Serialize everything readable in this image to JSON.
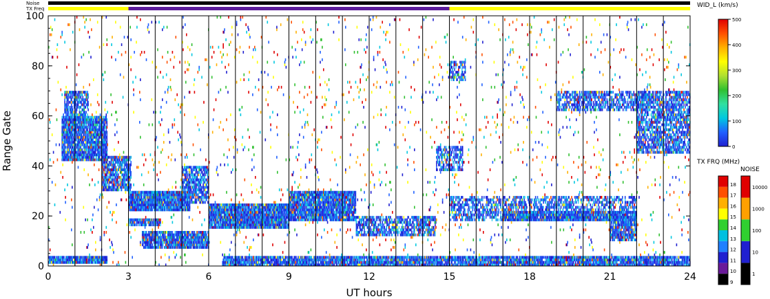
{
  "chart_data": {
    "type": "heatmap",
    "xlabel": "UT hours",
    "ylabel": "Range Gate",
    "xlim": [
      0,
      24
    ],
    "ylim": [
      0,
      100
    ],
    "x_ticks": [
      "0",
      "3",
      "6",
      "9",
      "12",
      "15",
      "18",
      "21",
      "24"
    ],
    "x_tick_values": [
      0,
      3,
      6,
      9,
      12,
      15,
      18,
      21,
      24
    ],
    "y_ticks": [
      "0",
      "20",
      "40",
      "60",
      "80",
      "100"
    ],
    "y_tick_values": [
      0,
      20,
      40,
      60,
      80,
      100
    ],
    "vertical_lines_ut": [
      1,
      2,
      3,
      4,
      5,
      6,
      7,
      8,
      9,
      10,
      11,
      12,
      13,
      14,
      15,
      16,
      17,
      18,
      19,
      20,
      21,
      22,
      23
    ],
    "top_bars": {
      "noise_label": "Noise",
      "txfreq_label": "TX Freq",
      "noise_color": "#000000",
      "txfreq_segments": [
        {
          "start": 0,
          "end": 3,
          "color": "#ffff00"
        },
        {
          "start": 3,
          "end": 15,
          "color": "#5a1a9a"
        },
        {
          "start": 15,
          "end": 24,
          "color": "#ffff00"
        }
      ]
    },
    "width_colorbar": {
      "title": "WID_L (km/s)",
      "ticks": [
        "0",
        "100",
        "200",
        "300",
        "400",
        "500"
      ],
      "tick_values": [
        0,
        100,
        200,
        300,
        400,
        500
      ],
      "range": [
        0,
        500
      ],
      "gradient": [
        "#2020d0",
        "#2060ff",
        "#00c8e0",
        "#30e0a0",
        "#30c030",
        "#b0e030",
        "#ffff00",
        "#ffb000",
        "#ff5000",
        "#e00000"
      ]
    },
    "txfreq_colorbar": {
      "title": "TX FRQ (MHz)",
      "ticks": [
        "9",
        "10",
        "11",
        "12",
        "13",
        "14",
        "15",
        "16",
        "17",
        "18"
      ],
      "colors": [
        "#000000",
        "#6a1a9a",
        "#2020d0",
        "#2080ff",
        "#00c0e0",
        "#30d030",
        "#ffff00",
        "#ffb000",
        "#ff5000",
        "#e00000"
      ]
    },
    "noise_colorbar": {
      "title": "NOISE",
      "ticks": [
        "1",
        "10",
        "100",
        "1000",
        "10000"
      ],
      "colors": [
        "#000000",
        "#2020d0",
        "#30d030",
        "#ffa000",
        "#e00000"
      ]
    },
    "scatter_regions": [
      {
        "ut": [
          0.0,
          2.2
        ],
        "gate": [
          1,
          4
        ],
        "density": 0.95,
        "width": "low"
      },
      {
        "ut": [
          0.5,
          2.2
        ],
        "gate": [
          42,
          60
        ],
        "density": 0.85,
        "width": "low"
      },
      {
        "ut": [
          0.6,
          1.5
        ],
        "gate": [
          58,
          70
        ],
        "density": 0.6,
        "width": "low"
      },
      {
        "ut": [
          2.0,
          3.1
        ],
        "gate": [
          30,
          44
        ],
        "density": 0.7,
        "width": "low"
      },
      {
        "ut": [
          3.0,
          5.3
        ],
        "gate": [
          22,
          30
        ],
        "density": 0.95,
        "width": "low"
      },
      {
        "ut": [
          3.0,
          4.2
        ],
        "gate": [
          16,
          19
        ],
        "density": 0.8,
        "width": "low"
      },
      {
        "ut": [
          3.5,
          6.0
        ],
        "gate": [
          7,
          14
        ],
        "density": 0.85,
        "width": "low"
      },
      {
        "ut": [
          5.0,
          6.0
        ],
        "gate": [
          25,
          40
        ],
        "density": 0.6,
        "width": "low"
      },
      {
        "ut": [
          6.0,
          9.0
        ],
        "gate": [
          15,
          25
        ],
        "density": 0.9,
        "width": "low"
      },
      {
        "ut": [
          9.0,
          11.5
        ],
        "gate": [
          18,
          30
        ],
        "density": 0.85,
        "width": "low"
      },
      {
        "ut": [
          11.5,
          14.5
        ],
        "gate": [
          12,
          20
        ],
        "density": 0.55,
        "width": "low"
      },
      {
        "ut": [
          6.5,
          24.0
        ],
        "gate": [
          0,
          4
        ],
        "density": 0.8,
        "width": "low"
      },
      {
        "ut": [
          14.5,
          15.5
        ],
        "gate": [
          38,
          48
        ],
        "density": 0.5,
        "width": "low"
      },
      {
        "ut": [
          15.0,
          22.0
        ],
        "gate": [
          18,
          28
        ],
        "density": 0.45,
        "width": "low"
      },
      {
        "ut": [
          17.0,
          22.0
        ],
        "gate": [
          18,
          22
        ],
        "density": 0.85,
        "width": "low"
      },
      {
        "ut": [
          21.0,
          22.0
        ],
        "gate": [
          10,
          20
        ],
        "density": 0.7,
        "width": "low"
      },
      {
        "ut": [
          19.0,
          22.5
        ],
        "gate": [
          62,
          70
        ],
        "density": 0.5,
        "width": "low"
      },
      {
        "ut": [
          22.0,
          24.0
        ],
        "gate": [
          45,
          70
        ],
        "density": 0.55,
        "width": "low"
      },
      {
        "ut": [
          15.0,
          15.6
        ],
        "gate": [
          74,
          82
        ],
        "density": 0.5,
        "width": "low"
      },
      {
        "ut": [
          0.0,
          24.0
        ],
        "gate": [
          0,
          100
        ],
        "density": 0.02,
        "width": "mixed"
      }
    ]
  }
}
